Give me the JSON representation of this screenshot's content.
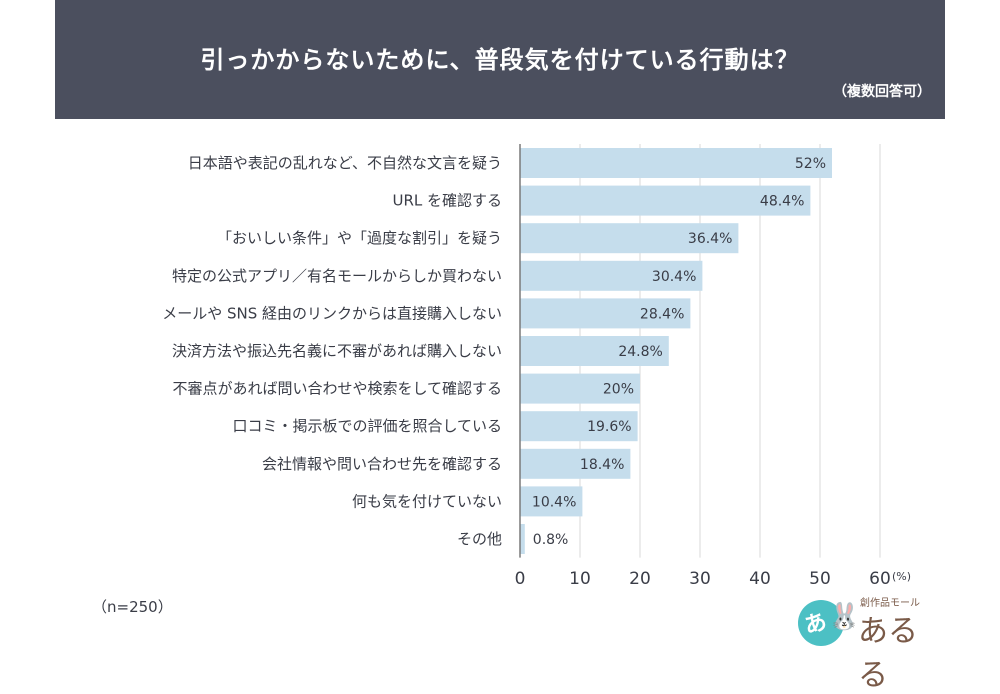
{
  "header": {
    "title": "引っかからないために、普段気を付けている行動は？",
    "subtitle": "（複数回答可）"
  },
  "note": "（n=250）",
  "logo": {
    "small_text": "創作品モール",
    "main_text": "あるる",
    "badge_char": "あ",
    "mascot": "rabbit-icon",
    "badge_color": "#4cc0c4",
    "text_color": "#7a5a48"
  },
  "colors": {
    "header_bg": "#4b4f5e",
    "bar": "#c5ddec",
    "grid": "#d9d9d9",
    "axis": "#7a7a7a",
    "text": "#3a3d47"
  },
  "chart_data": {
    "type": "bar",
    "orientation": "horizontal",
    "title": "引っかからないために、普段気を付けている行動は？",
    "subtitle": "（複数回答可）",
    "xlabel": "",
    "ylabel": "",
    "unit_label": "(%)",
    "xlim": [
      0,
      60
    ],
    "xticks": [
      0,
      10,
      20,
      30,
      40,
      50,
      60
    ],
    "grid": true,
    "legend": "none",
    "categories": [
      "日本語や表記の乱れなど、不自然な文言を疑う",
      "URL を確認する",
      "「おいしい条件」や「過度な割引」を疑う",
      "特定の公式アプリ／有名モールからしか買わない",
      "メールや SNS 経由のリンクからは直接購入しない",
      "決済方法や振込先名義に不審があれば購入しない",
      "不審点があれば問い合わせや検索をして確認する",
      "口コミ・掲示板での評価を照合している",
      "会社情報や問い合わせ先を確認する",
      "何も気を付けていない",
      "その他"
    ],
    "values": [
      52,
      48.4,
      36.4,
      30.4,
      28.4,
      24.8,
      20,
      19.6,
      18.4,
      10.4,
      0.8
    ],
    "value_labels": [
      "52%",
      "48.4%",
      "36.4%",
      "30.4%",
      "28.4%",
      "24.8%",
      "20%",
      "19.6%",
      "18.4%",
      "10.4%",
      "0.8%"
    ]
  }
}
